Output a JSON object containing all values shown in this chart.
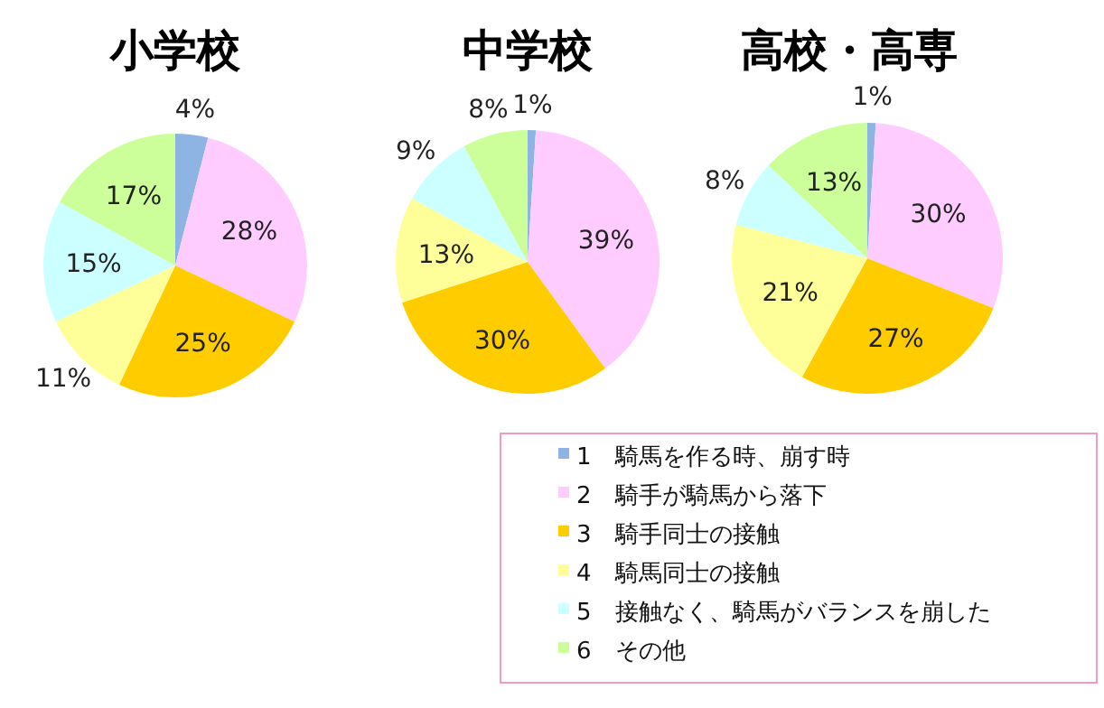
{
  "chart_data": [
    {
      "type": "pie",
      "title": "小学校",
      "categories": [
        null,
        null,
        null,
        null,
        null,
        null
      ],
      "values": [
        4,
        28,
        25,
        11,
        15,
        17
      ],
      "value_labels": [
        "4%",
        "28%",
        "25%",
        "11%",
        "15%",
        "17%"
      ],
      "colors": [
        "#8eb4e3",
        "#ffccff",
        "#ffcc00",
        "#ffff99",
        "#ccffff",
        "#ccff99"
      ]
    },
    {
      "type": "pie",
      "title": "中学校",
      "categories": [
        null,
        null,
        null,
        null,
        null,
        null
      ],
      "values": [
        1,
        39,
        30,
        13,
        9,
        8
      ],
      "value_labels": [
        "1%",
        "39%",
        "30%",
        "13%",
        "9%",
        "8%"
      ],
      "colors": [
        "#8eb4e3",
        "#ffccff",
        "#ffcc00",
        "#ffff99",
        "#ccffff",
        "#ccff99"
      ]
    },
    {
      "type": "pie",
      "title": "高校・高専",
      "categories": [
        "1　騎馬を作る時、崩す時",
        "2　騎手が騎馬から落下",
        "3　騎手同士の接触",
        "4　騎馬同士の接触",
        "5　接触なく、騎馬がバランスを崩した",
        "6　その他"
      ],
      "values": [
        1,
        30,
        27,
        21,
        8,
        13
      ],
      "value_labels": [
        "1%",
        "30%",
        "27%",
        "21%",
        "8%",
        "13%"
      ],
      "colors": [
        "#8eb4e3",
        "#ffccff",
        "#ffcc00",
        "#ffff99",
        "#ccffff",
        "#ccff99"
      ],
      "legend": "bottom left"
    }
  ]
}
